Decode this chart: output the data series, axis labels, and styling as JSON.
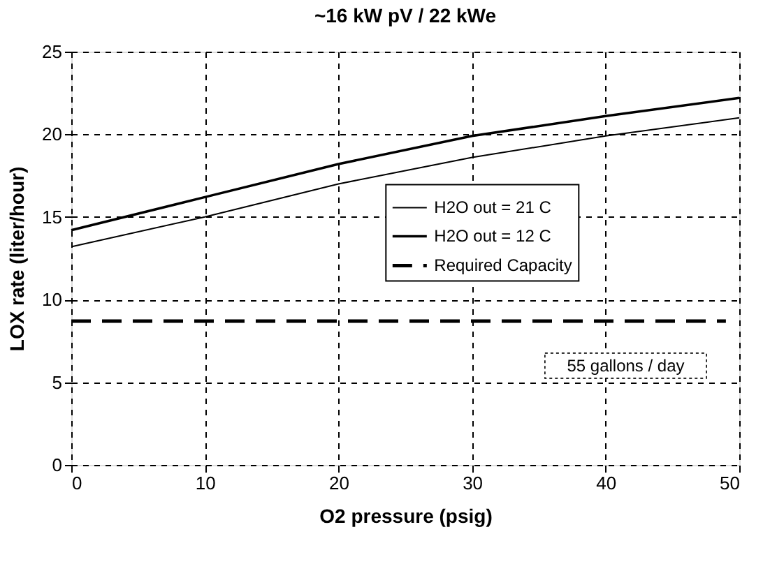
{
  "chart_data": {
    "type": "line",
    "title": "~16 kW pV / 22 kWe",
    "xlabel": "O2 pressure (psig)",
    "ylabel": "LOX rate (liter/hour)",
    "x": [
      0,
      10,
      20,
      30,
      40,
      50
    ],
    "series": [
      {
        "name": "H2O out = 21 C",
        "color": "#000000",
        "line_style": "solid",
        "values": [
          13.2,
          15.0,
          17.0,
          18.6,
          19.9,
          21.0
        ]
      },
      {
        "name": "H2O out = 12 C",
        "color": "#000000",
        "line_style": "solid",
        "values": [
          14.2,
          16.2,
          18.2,
          19.9,
          21.1,
          22.2
        ]
      },
      {
        "name": "Required Capacity",
        "color": "#000000",
        "line_style": "dashed",
        "x": [
          0,
          49
        ],
        "values": [
          8.7,
          8.7
        ]
      }
    ],
    "xlim": [
      0,
      50
    ],
    "xticks": [
      0,
      10,
      20,
      30,
      40,
      50
    ],
    "ylim": [
      0,
      25
    ],
    "yticks": [
      0,
      5,
      10,
      15,
      20,
      25
    ],
    "grid": true,
    "legend": "right",
    "marker": "none",
    "annotations": [
      "55 gallons / day"
    ]
  }
}
